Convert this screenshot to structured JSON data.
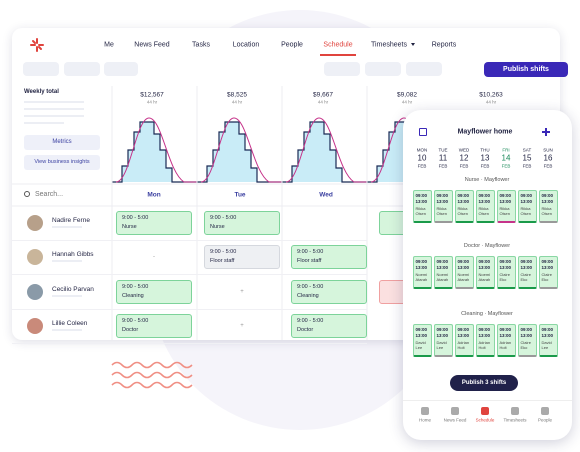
{
  "nav": {
    "items": [
      "Me",
      "News Feed",
      "Tasks",
      "Location",
      "People",
      "Schedule",
      "Timesheets",
      "Reports"
    ]
  },
  "publish_button": "Publish shifts",
  "sidebar": {
    "weekly_total": "Weekly total",
    "metrics": "Metrics",
    "insights": "View business insights",
    "search": "Search..."
  },
  "totals": [
    {
      "cost": "$12,567",
      "hours": "44 hr"
    },
    {
      "cost": "$8,525",
      "hours": "44 hr"
    },
    {
      "cost": "$9,667",
      "hours": "44 hr"
    },
    {
      "cost": "$9,082",
      "hours": "44 hr"
    },
    {
      "cost": "$10,263",
      "hours": "44 hr"
    }
  ],
  "days": [
    "Mon",
    "Tue",
    "Wed"
  ],
  "staff": [
    {
      "name": "Nadire Ferne",
      "shifts": [
        {
          "time": "9:00 - 5:00",
          "role": "Nurse"
        },
        {
          "time": "9:00 - 5:00",
          "role": "Nurse"
        },
        null
      ]
    },
    {
      "name": "Hannah Gibbs",
      "shifts": [
        "-",
        {
          "time": "9:00 - 5:00",
          "role": "Floor staff"
        },
        {
          "time": "9:00 - 5:00",
          "role": "Floor staff"
        }
      ]
    },
    {
      "name": "Cecilio Parvan",
      "shifts": [
        {
          "time": "9:00 - 5:00",
          "role": "Cleaning"
        },
        "+",
        {
          "time": "9:00 - 5:00",
          "role": "Cleaning"
        }
      ]
    },
    {
      "name": "Lillie Coleen",
      "shifts": [
        {
          "time": "9:00 - 5:00",
          "role": "Doctor"
        },
        "+",
        {
          "time": "9:00 - 5:00",
          "role": "Doctor"
        }
      ]
    }
  ],
  "phone": {
    "title": "Mayflower home",
    "days": [
      {
        "dow": "MON",
        "date": 10,
        "month": "FEB"
      },
      {
        "dow": "TUE",
        "date": 11,
        "month": "FEB"
      },
      {
        "dow": "WED",
        "date": 12,
        "month": "FEB"
      },
      {
        "dow": "THU",
        "date": 13,
        "month": "FEB"
      },
      {
        "dow": "FRI",
        "date": 14,
        "month": "FEB"
      },
      {
        "dow": "SAT",
        "date": 15,
        "month": "FEB"
      },
      {
        "dow": "SUN",
        "date": 16,
        "month": "FEB"
      }
    ],
    "sections": [
      {
        "label": "Nurse · Mayflower",
        "cards": [
          {
            "start": "09:00",
            "end": "13:00",
            "name": "Rikka Olsen"
          },
          {
            "start": "09:00",
            "end": "13:00",
            "name": "Rikka Olsen"
          },
          {
            "start": "09:00",
            "end": "13:00",
            "name": "Rikka Olsen"
          },
          {
            "start": "09:00",
            "end": "13:00",
            "name": "Rikka Olsen"
          },
          {
            "start": "09:00",
            "end": "13:00",
            "name": "Rikka Olsen"
          },
          {
            "start": "09:00",
            "end": "13:00",
            "name": "Rikka Olsen"
          },
          {
            "start": "09:00",
            "end": "13:00",
            "name": "Rikka Olsen"
          }
        ]
      },
      {
        "label": "Doctor · Mayflower",
        "cards": [
          {
            "start": "09:00",
            "end": "13:00",
            "name": "Noemi Atarah"
          },
          {
            "start": "09:00",
            "end": "13:00",
            "name": "Noemi Atarah"
          },
          {
            "start": "09:00",
            "end": "13:00",
            "name": "Noemi Atarah"
          },
          {
            "start": "09:00",
            "end": "13:00",
            "name": "Noemi Atarah"
          },
          {
            "start": "09:00",
            "end": "13:00",
            "name": "Claire Eko"
          },
          {
            "start": "09:00",
            "end": "13:00",
            "name": "Claire Eko"
          },
          {
            "start": "09:00",
            "end": "13:00",
            "name": "Claire Eko"
          }
        ]
      },
      {
        "label": "Cleaning · Mayflower",
        "cards": [
          {
            "start": "09:00",
            "end": "13:00",
            "name": "David Lee"
          },
          {
            "start": "09:00",
            "end": "13:00",
            "name": "David Lee"
          },
          {
            "start": "09:00",
            "end": "13:00",
            "name": "Adrian Holt"
          },
          {
            "start": "09:00",
            "end": "13:00",
            "name": "Adrian Holt"
          },
          {
            "start": "09:00",
            "end": "13:00",
            "name": "Adrian Holt"
          },
          {
            "start": "09:00",
            "end": "13:00",
            "name": "Claire Eko"
          },
          {
            "start": "09:00",
            "end": "13:00",
            "name": "David Lee"
          }
        ]
      }
    ],
    "publish": "Publish 3 shifts",
    "tabs": [
      "Home",
      "News Feed",
      "Schedule",
      "Timesheets",
      "People"
    ]
  }
}
